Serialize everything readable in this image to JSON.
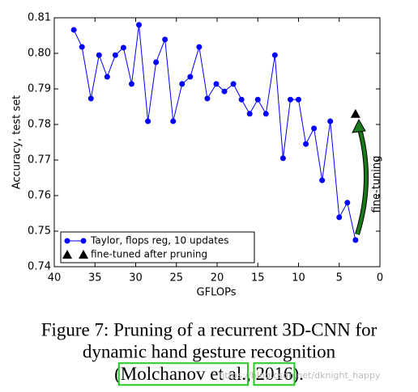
{
  "chart_data": {
    "type": "line",
    "xlabel": "GFLOPs",
    "ylabel": "Accuracy, test set",
    "xlim": [
      40,
      0
    ],
    "xticks": [
      40,
      35,
      30,
      25,
      20,
      15,
      10,
      5,
      0
    ],
    "ylim": [
      0.74,
      0.81
    ],
    "yticks": [
      0.74,
      0.75,
      0.76,
      0.77,
      0.78,
      0.79,
      {
        "value": 0.8,
        "label": "0.80"
      },
      0.81
    ],
    "legend": "lower left",
    "annotation": "fine-tuning",
    "series": [
      {
        "name": "Taylor, flops reg, 10 updates",
        "color": "#0000ff",
        "marker": "circle",
        "x": [
          37.6,
          36.6,
          35.5,
          34.5,
          33.5,
          32.5,
          31.5,
          30.5,
          29.6,
          28.5,
          27.5,
          26.4,
          25.4,
          24.3,
          23.3,
          22.2,
          21.2,
          20.1,
          19.1,
          18.0,
          17.0,
          16.0,
          15.0,
          14.0,
          12.9,
          11.9,
          11.0,
          10.0,
          9.1,
          8.1,
          7.1,
          6.1,
          5.0,
          4.0,
          3.0
        ],
        "values": [
          0.8066,
          0.8018,
          0.7873,
          0.7995,
          0.7934,
          0.7995,
          0.8016,
          0.7914,
          0.808,
          0.7809,
          0.7975,
          0.8039,
          0.7809,
          0.7914,
          0.7934,
          0.8018,
          0.7873,
          0.7914,
          0.7893,
          0.7914,
          0.787,
          0.783,
          0.787,
          0.783,
          0.7995,
          0.7705,
          0.787,
          0.787,
          0.7745,
          0.7789,
          0.7643,
          0.7809,
          0.7539,
          0.758,
          0.7475
        ]
      },
      {
        "name": "fine-tuned after pruning",
        "color": "#000000",
        "marker": "triangle",
        "x": [
          3.0
        ],
        "values": [
          0.783
        ]
      }
    ]
  },
  "caption": {
    "lines": [
      "Figure 7: Pruning of a recurrent 3D-CNN for",
      "dynamic hand gesture recognition"
    ],
    "citation": [
      "(",
      "Molchanov et al.",
      ", ",
      "2016",
      ")."
    ],
    "watermark": "https://blog.csdn.net/dknight_happy"
  }
}
